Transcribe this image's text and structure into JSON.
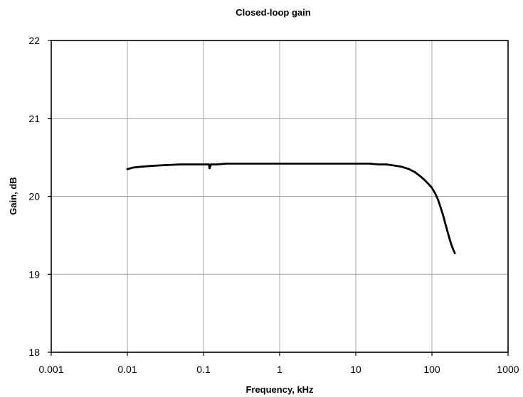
{
  "chart_data": {
    "type": "line",
    "title": "Closed-loop gain",
    "xlabel": "Frequency, kHz",
    "ylabel": "Gain, dB",
    "xscale": "log",
    "xlim": [
      0.001,
      1000
    ],
    "ylim": [
      18,
      22
    ],
    "grid": true,
    "legend": "none",
    "line_color": "#000000",
    "grid_color": "#a6a6a6",
    "x_ticks": [
      "0.001",
      "0.01",
      "0.1",
      "1",
      "10",
      "100",
      "1000"
    ],
    "y_ticks": [
      "18",
      "19",
      "20",
      "21",
      "22"
    ],
    "series": [
      {
        "x": [
          0.01,
          0.012,
          0.015,
          0.02,
          0.03,
          0.05,
          0.08,
          0.11,
          0.118,
          0.12,
          0.125,
          0.13,
          0.15,
          0.2,
          0.3,
          0.5,
          1,
          2,
          5,
          10,
          15,
          20,
          25,
          30,
          35,
          40,
          50,
          60,
          70,
          80,
          90,
          100,
          110,
          120,
          130,
          140,
          150,
          160,
          170,
          180,
          190,
          200
        ],
        "y": [
          20.35,
          20.37,
          20.38,
          20.39,
          20.4,
          20.41,
          20.41,
          20.41,
          20.41,
          20.36,
          20.41,
          20.41,
          20.41,
          20.42,
          20.42,
          20.42,
          20.42,
          20.42,
          20.42,
          20.42,
          20.42,
          20.41,
          20.41,
          20.4,
          20.39,
          20.38,
          20.35,
          20.31,
          20.26,
          20.21,
          20.16,
          20.11,
          20.04,
          19.96,
          19.86,
          19.76,
          19.65,
          19.55,
          19.46,
          19.38,
          19.32,
          19.27
        ]
      }
    ]
  }
}
